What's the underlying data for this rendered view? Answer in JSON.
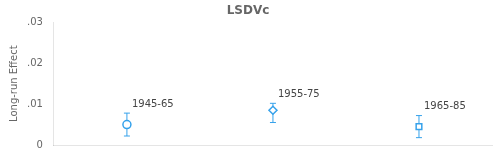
{
  "chart_data": {
    "type": "scatter",
    "title": "LSDVc",
    "y_label": "Long-run Effect",
    "xlim": [
      0.5,
      3.5
    ],
    "ylim": [
      0,
      0.03
    ],
    "yticks": [
      0,
      {
        "value": 0.01,
        "label": ".01"
      },
      {
        "value": 0.02,
        "label": ".02"
      },
      {
        "value": 0.03,
        "label": ".03"
      }
    ],
    "grid": false,
    "tick_labels": "y",
    "series": [
      {
        "marker": "circle",
        "x": [
          1
        ],
        "values": [
          0.005
        ],
        "error_low": [
          0.0022
        ],
        "error_high": [
          0.0078
        ],
        "labels": [
          "1945-65"
        ]
      },
      {
        "marker": "diamond",
        "x": [
          2
        ],
        "values": [
          0.0085
        ],
        "error_low": [
          0.0055
        ],
        "error_high": [
          0.0102
        ],
        "labels": [
          "1955-75"
        ]
      },
      {
        "marker": "square",
        "x": [
          3
        ],
        "values": [
          0.0045
        ],
        "error_low": [
          0.0018
        ],
        "error_high": [
          0.0072
        ],
        "labels": [
          "1965-85"
        ]
      }
    ]
  }
}
